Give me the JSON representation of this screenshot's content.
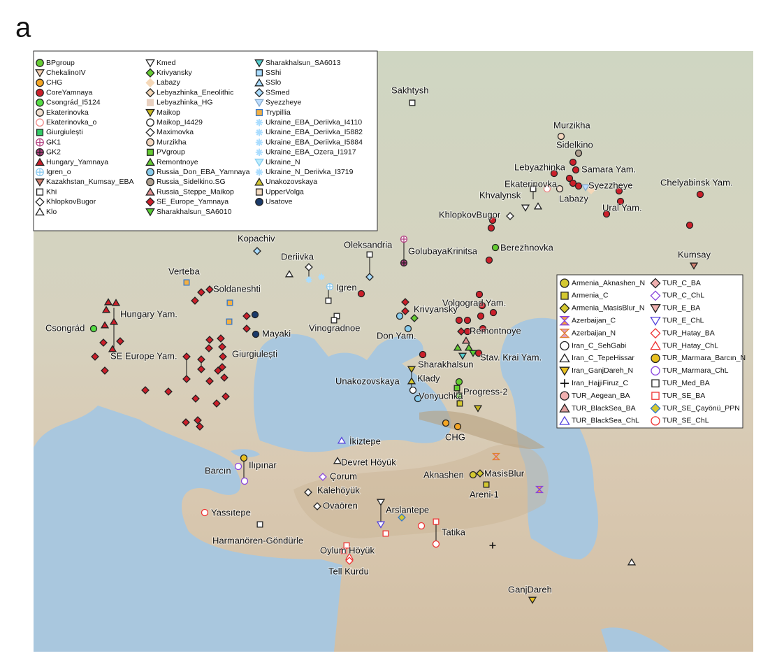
{
  "panel_label": "a",
  "legend_1": {
    "items": [
      "BPgroup",
      "ChekalinoIV",
      "CHG",
      "CoreYamnaya",
      "Csongrád_I5124",
      "Ekaterinovka",
      "Ekaterinovka_o",
      "Giurgiulești",
      "GK1",
      "GK2",
      "Hungary_Yamnaya",
      "Igren_o",
      "Kazakhstan_Kumsay_EBA",
      "Khi",
      "KhlopkovBugor",
      "Klo",
      "Kmed",
      "Krivyansky",
      "Labazy",
      "Lebyazhinka_Eneolithic",
      "Lebyazhinka_HG",
      "Maikop",
      "Maikop_I4429",
      "Maximovka",
      "Murzikha",
      "PVgroup",
      "Remontnoye",
      "Russia_Don_EBA_Yamnaya",
      "Russia_Sidelkino.SG",
      "Russia_Steppe_Maikop",
      "SE_Europe_Yamnaya",
      "Sharakhalsun_SA6010",
      "Sharakhalsun_SA6013",
      "SShi",
      "SSlo",
      "SSmed",
      "Syezzheye",
      "Trypillia",
      "Ukraine_EBA_Deriivka_I4110",
      "Ukraine_EBA_Deriivka_I5882",
      "Ukraine_EBA_Deriivka_I5884",
      "Ukraine_EBA_Ozera_I1917",
      "Ukraine_N",
      "Ukraine_N_Deriivka_I3719",
      "Unakozovskaya",
      "UpperVolga",
      "Usatove"
    ]
  },
  "legend_2": {
    "items": [
      "Armenia_Aknashen_N",
      "Armenia_C",
      "Armenia_MasisBlur_N",
      "Azerbaijan_C",
      "Azerbaijan_N",
      "Iran_C_SehGabi",
      "Iran_C_TepeHissar",
      "Iran_GanjDareh_N",
      "Iran_HajjiFiruz_C",
      "TUR_Aegean_BA",
      "TUR_BlackSea_BA",
      "TUR_BlackSea_ChL",
      "TUR_C_BA",
      "TUR_C_ChL",
      "TUR_E_BA",
      "TUR_E_ChL",
      "TUR_Hatay_BA",
      "TUR_Hatay_ChL",
      "TUR_Marmara_Barcın_N",
      "TUR_Marmara_ChL",
      "TUR_Med_BA",
      "TUR_SE_BA",
      "TUR_SE_Çayönü_PPN",
      "TUR_SE_ChL"
    ]
  },
  "map": {
    "labels": [
      "Sakhtysh",
      "Murzikha",
      "Sidelkino",
      "Lebyazhinka",
      "Samara Yam.",
      "Syezzheye",
      "Ekaterinovka",
      "Khvalynsk",
      "Labazy",
      "Chelyabinsk Yam.",
      "Ural Yam.",
      "KhlopkovBugor",
      "Kopachiv",
      "Oleksandria",
      "GolubayaKrinitsa",
      "Berezhnovka",
      "Kumsay",
      "Deriivka",
      "Verteba",
      "Soldaneshti",
      "Igren",
      "Volgograd Yam.",
      "Hungary Yam.",
      "Krivyansky",
      "Mayaki",
      "Vinogradnoe",
      "Remontnoye",
      "Csongrád",
      "Don Yam.",
      "SE Europe Yam.",
      "Giurgiulești",
      "Stav. Krai Yam.",
      "Sharakhalsun",
      "Unakozovskaya",
      "Klady",
      "Progress-2",
      "Vonyuchka",
      "CHG",
      "İkiztepe",
      "Devret Höyük",
      "Barcın",
      "Ilıpınar",
      "Çorum",
      "Aknashen",
      "MasisBlur",
      "Kalehöyük",
      "Areni-1",
      "Ovaören",
      "Yassıtepe",
      "Arslantepe",
      "Harmanören-Göndürle",
      "Tatika",
      "Oylum Höyük",
      "Tell Kurdu",
      "GanjDareh"
    ]
  }
}
